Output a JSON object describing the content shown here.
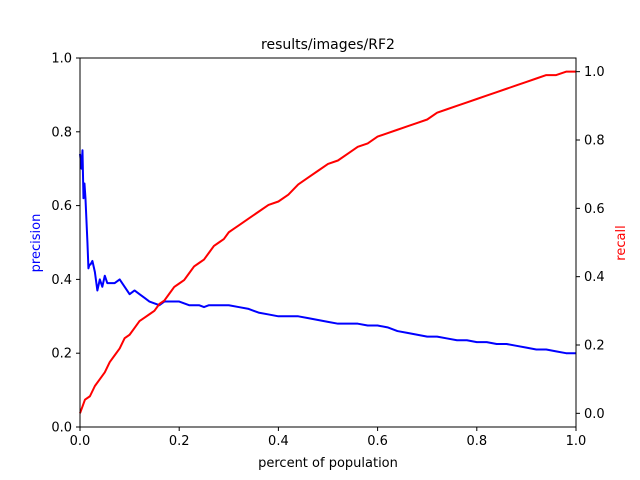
{
  "chart_data": {
    "type": "line",
    "title": "results/images/RF2",
    "xlabel": "percent of population",
    "ylabel_left": "precision",
    "ylabel_right": "recall",
    "xlim": [
      0,
      1
    ],
    "ylim_left": [
      0,
      1
    ],
    "ylim_right": [
      -0.04,
      1.04
    ],
    "grid": false,
    "x_ticks": [
      "0.0",
      "0.2",
      "0.4",
      "0.6",
      "0.8",
      "1.0"
    ],
    "y_left_ticks": [
      "0.0",
      "0.2",
      "0.4",
      "0.6",
      "0.8",
      "1.0"
    ],
    "y_right_ticks": [
      "0.0",
      "0.2",
      "0.4",
      "0.6",
      "0.8",
      "1.0"
    ],
    "colors": {
      "precision": "#0000ff",
      "recall": "#ff0000",
      "left_label": "#0000ff",
      "right_label": "#ff0000"
    },
    "series": [
      {
        "name": "precision",
        "axis": "left",
        "x": [
          0.0,
          0.003,
          0.005,
          0.007,
          0.009,
          0.011,
          0.013,
          0.015,
          0.017,
          0.019,
          0.021,
          0.025,
          0.03,
          0.035,
          0.04,
          0.045,
          0.05,
          0.055,
          0.06,
          0.065,
          0.07,
          0.08,
          0.09,
          0.1,
          0.11,
          0.12,
          0.13,
          0.14,
          0.16,
          0.17,
          0.18,
          0.2,
          0.22,
          0.24,
          0.25,
          0.26,
          0.28,
          0.3,
          0.32,
          0.34,
          0.36,
          0.38,
          0.4,
          0.42,
          0.44,
          0.46,
          0.48,
          0.5,
          0.52,
          0.54,
          0.56,
          0.58,
          0.6,
          0.62,
          0.64,
          0.66,
          0.68,
          0.7,
          0.72,
          0.74,
          0.76,
          0.78,
          0.8,
          0.82,
          0.84,
          0.86,
          0.88,
          0.9,
          0.92,
          0.94,
          0.96,
          0.98,
          1.0
        ],
        "y": [
          0.74,
          0.7,
          0.75,
          0.62,
          0.66,
          0.62,
          0.56,
          0.5,
          0.43,
          0.44,
          0.44,
          0.45,
          0.42,
          0.37,
          0.4,
          0.38,
          0.41,
          0.39,
          0.39,
          0.39,
          0.39,
          0.4,
          0.38,
          0.36,
          0.37,
          0.36,
          0.35,
          0.34,
          0.33,
          0.34,
          0.34,
          0.34,
          0.33,
          0.33,
          0.325,
          0.33,
          0.33,
          0.33,
          0.325,
          0.32,
          0.31,
          0.305,
          0.3,
          0.3,
          0.3,
          0.295,
          0.29,
          0.285,
          0.28,
          0.28,
          0.28,
          0.275,
          0.275,
          0.27,
          0.26,
          0.255,
          0.25,
          0.245,
          0.245,
          0.24,
          0.235,
          0.235,
          0.23,
          0.23,
          0.225,
          0.225,
          0.22,
          0.215,
          0.21,
          0.21,
          0.205,
          0.2,
          0.2
        ]
      },
      {
        "name": "recall",
        "axis": "right",
        "x": [
          0.0,
          0.01,
          0.02,
          0.03,
          0.04,
          0.05,
          0.06,
          0.07,
          0.08,
          0.09,
          0.1,
          0.11,
          0.12,
          0.13,
          0.14,
          0.15,
          0.16,
          0.17,
          0.18,
          0.19,
          0.2,
          0.21,
          0.22,
          0.23,
          0.24,
          0.25,
          0.26,
          0.27,
          0.28,
          0.29,
          0.3,
          0.31,
          0.32,
          0.34,
          0.36,
          0.38,
          0.4,
          0.42,
          0.44,
          0.46,
          0.48,
          0.5,
          0.52,
          0.54,
          0.56,
          0.58,
          0.6,
          0.62,
          0.64,
          0.66,
          0.68,
          0.7,
          0.72,
          0.74,
          0.76,
          0.78,
          0.8,
          0.82,
          0.84,
          0.86,
          0.88,
          0.9,
          0.92,
          0.94,
          0.96,
          0.98,
          1.0
        ],
        "y": [
          0.0,
          0.04,
          0.05,
          0.08,
          0.1,
          0.12,
          0.15,
          0.17,
          0.19,
          0.22,
          0.23,
          0.25,
          0.27,
          0.28,
          0.29,
          0.3,
          0.32,
          0.33,
          0.35,
          0.37,
          0.38,
          0.39,
          0.41,
          0.43,
          0.44,
          0.45,
          0.47,
          0.49,
          0.5,
          0.51,
          0.53,
          0.54,
          0.55,
          0.57,
          0.59,
          0.61,
          0.62,
          0.64,
          0.67,
          0.69,
          0.71,
          0.73,
          0.74,
          0.76,
          0.78,
          0.79,
          0.81,
          0.82,
          0.83,
          0.84,
          0.85,
          0.86,
          0.88,
          0.89,
          0.9,
          0.91,
          0.92,
          0.93,
          0.94,
          0.95,
          0.96,
          0.97,
          0.98,
          0.99,
          0.99,
          1.0,
          1.0
        ]
      }
    ]
  }
}
